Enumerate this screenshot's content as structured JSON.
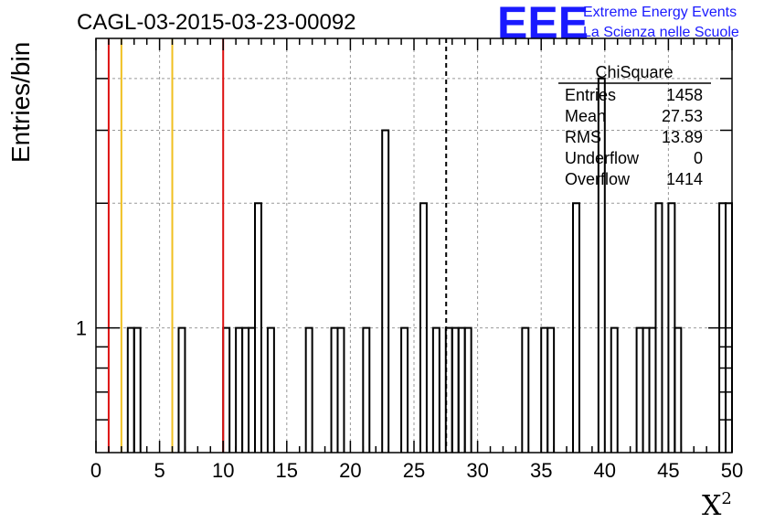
{
  "chart_data": {
    "type": "histogram",
    "title": "CAGL-03-2015-03-23-00092",
    "xlabel": "X",
    "xlabel_superscript": "2",
    "ylabel": "Entries/bin",
    "xlim": [
      0,
      50
    ],
    "ylim": [
      0.5,
      5
    ],
    "yscale": "log",
    "grid": true,
    "bin_width": 0.5,
    "x_ticks": [
      "0",
      "5",
      "10",
      "15",
      "20",
      "25",
      "30",
      "35",
      "40",
      "45",
      "50"
    ],
    "y_ticks": [
      {
        "value": 1,
        "label": "1"
      }
    ],
    "bins": [
      {
        "x0": 2.5,
        "count": 1
      },
      {
        "x0": 3.0,
        "count": 1
      },
      {
        "x0": 6.5,
        "count": 1
      },
      {
        "x0": 10.0,
        "count": 1
      },
      {
        "x0": 11.0,
        "count": 1
      },
      {
        "x0": 11.5,
        "count": 1
      },
      {
        "x0": 12.0,
        "count": 1
      },
      {
        "x0": 12.5,
        "count": 2
      },
      {
        "x0": 13.5,
        "count": 1
      },
      {
        "x0": 16.5,
        "count": 1
      },
      {
        "x0": 18.5,
        "count": 1
      },
      {
        "x0": 19.0,
        "count": 1
      },
      {
        "x0": 21.0,
        "count": 1
      },
      {
        "x0": 22.5,
        "count": 3
      },
      {
        "x0": 24.0,
        "count": 1
      },
      {
        "x0": 25.5,
        "count": 2
      },
      {
        "x0": 26.5,
        "count": 1
      },
      {
        "x0": 27.5,
        "count": 1
      },
      {
        "x0": 28.0,
        "count": 1
      },
      {
        "x0": 28.5,
        "count": 1
      },
      {
        "x0": 29.0,
        "count": 1
      },
      {
        "x0": 33.5,
        "count": 1
      },
      {
        "x0": 35.0,
        "count": 1
      },
      {
        "x0": 35.5,
        "count": 1
      },
      {
        "x0": 37.5,
        "count": 2
      },
      {
        "x0": 39.5,
        "count": 4
      },
      {
        "x0": 40.5,
        "count": 1
      },
      {
        "x0": 42.5,
        "count": 1
      },
      {
        "x0": 43.0,
        "count": 1
      },
      {
        "x0": 43.5,
        "count": 1
      },
      {
        "x0": 44.0,
        "count": 2
      },
      {
        "x0": 45.0,
        "count": 2
      },
      {
        "x0": 45.5,
        "count": 1
      },
      {
        "x0": 49.0,
        "count": 2
      },
      {
        "x0": 49.5,
        "count": 2
      }
    ],
    "vertical_lines": [
      {
        "x": 1.0,
        "color": "#dd1111",
        "style": "solid"
      },
      {
        "x": 2.0,
        "color": "#f0c020",
        "style": "solid"
      },
      {
        "x": 6.0,
        "color": "#f0c020",
        "style": "solid"
      },
      {
        "x": 10.0,
        "color": "#dd1111",
        "style": "solid"
      },
      {
        "x": 27.53,
        "color": "#000000",
        "style": "dashed"
      }
    ],
    "stats_box": {
      "title": "ChiSquare",
      "rows": [
        {
          "label": "Entries",
          "value": "1458"
        },
        {
          "label": "Mean",
          "value": "27.53"
        },
        {
          "label": "RMS",
          "value": "13.89"
        },
        {
          "label": "Underflow",
          "value": "0"
        },
        {
          "label": "Overflow",
          "value": "1414"
        }
      ]
    }
  },
  "logo": {
    "mark": "EEE",
    "line1": "Extreme Energy Events",
    "line2": "La Scienza nelle Scuole",
    "color": "#1a1aff"
  }
}
